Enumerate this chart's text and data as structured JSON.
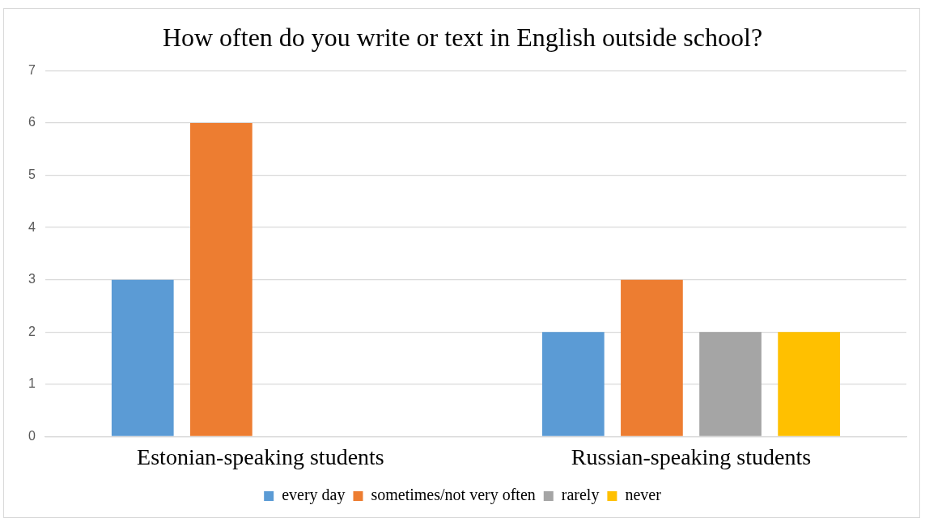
{
  "chart_data": {
    "type": "bar",
    "title": "How often do you write or text in English outside school?",
    "categories": [
      "Estonian-speaking students",
      "Russian-speaking students"
    ],
    "series": [
      {
        "name": "every day",
        "color": "#5b9bd5",
        "values": [
          3,
          2
        ]
      },
      {
        "name": "sometimes/not very often",
        "color": "#ed7d31",
        "values": [
          6,
          3
        ]
      },
      {
        "name": "rarely",
        "color": "#a5a5a5",
        "values": [
          0,
          2
        ]
      },
      {
        "name": "never",
        "color": "#ffc000",
        "values": [
          0,
          2
        ]
      }
    ],
    "ylim": [
      0,
      7
    ],
    "yticks": [
      0,
      1,
      2,
      3,
      4,
      5,
      6,
      7
    ],
    "grid": "y",
    "legend": "bottom"
  }
}
